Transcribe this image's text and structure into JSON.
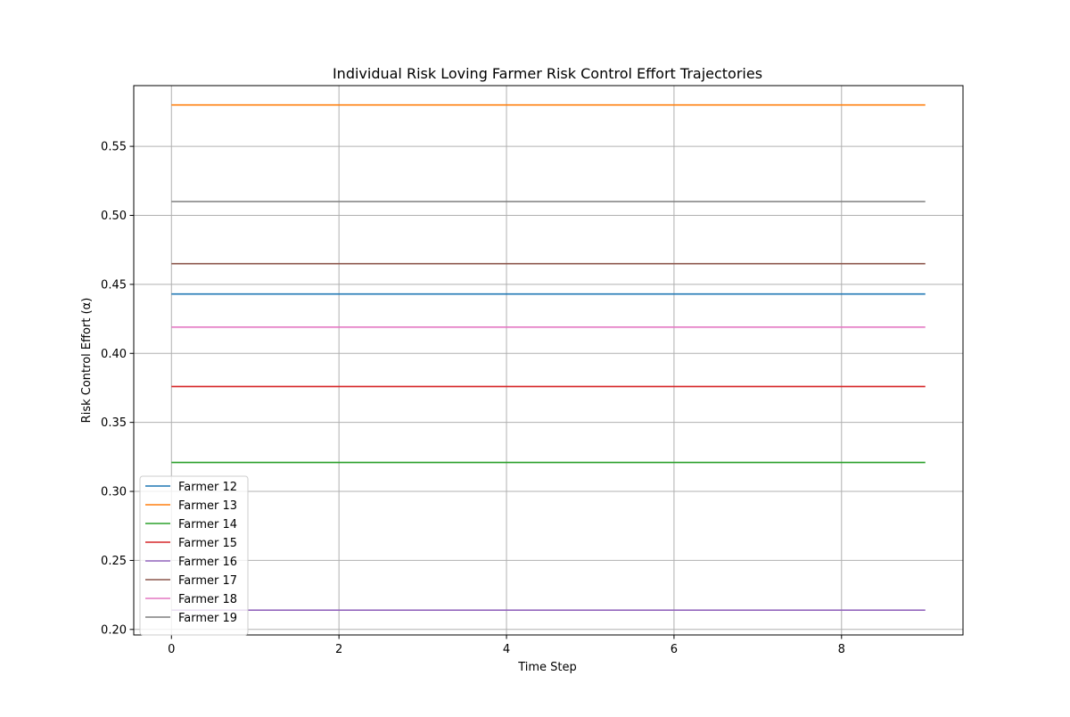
{
  "chart_data": {
    "type": "line",
    "title": "Individual Risk Loving Farmer Risk Control Effort Trajectories",
    "xlabel": "Time Step",
    "ylabel": "Risk Control Effort (α)",
    "x": [
      0,
      1,
      2,
      3,
      4,
      5,
      6,
      7,
      8,
      9
    ],
    "xlim": [
      -0.45,
      9.45
    ],
    "ylim": [
      0.196,
      0.594
    ],
    "xticks": [
      0,
      2,
      4,
      6,
      8
    ],
    "xtick_labels": [
      "0",
      "2",
      "4",
      "6",
      "8"
    ],
    "yticks": [
      0.2,
      0.25,
      0.3,
      0.35,
      0.4,
      0.45,
      0.5,
      0.55
    ],
    "ytick_labels": [
      "0.20",
      "0.25",
      "0.30",
      "0.35",
      "0.40",
      "0.45",
      "0.50",
      "0.55"
    ],
    "grid": true,
    "legend_position": "lower-left",
    "series": [
      {
        "name": "Farmer 12",
        "color": "#1f77b4",
        "values": [
          0.443,
          0.443,
          0.443,
          0.443,
          0.443,
          0.443,
          0.443,
          0.443,
          0.443,
          0.443
        ]
      },
      {
        "name": "Farmer 13",
        "color": "#ff7f0e",
        "values": [
          0.58,
          0.58,
          0.58,
          0.58,
          0.58,
          0.58,
          0.58,
          0.58,
          0.58,
          0.58
        ]
      },
      {
        "name": "Farmer 14",
        "color": "#2ca02c",
        "values": [
          0.321,
          0.321,
          0.321,
          0.321,
          0.321,
          0.321,
          0.321,
          0.321,
          0.321,
          0.321
        ]
      },
      {
        "name": "Farmer 15",
        "color": "#d62728",
        "values": [
          0.376,
          0.376,
          0.376,
          0.376,
          0.376,
          0.376,
          0.376,
          0.376,
          0.376,
          0.376
        ]
      },
      {
        "name": "Farmer 16",
        "color": "#9467bd",
        "values": [
          0.214,
          0.214,
          0.214,
          0.214,
          0.214,
          0.214,
          0.214,
          0.214,
          0.214,
          0.214
        ]
      },
      {
        "name": "Farmer 17",
        "color": "#8c564b",
        "values": [
          0.465,
          0.465,
          0.465,
          0.465,
          0.465,
          0.465,
          0.465,
          0.465,
          0.465,
          0.465
        ]
      },
      {
        "name": "Farmer 18",
        "color": "#e377c2",
        "values": [
          0.419,
          0.419,
          0.419,
          0.419,
          0.419,
          0.419,
          0.419,
          0.419,
          0.419,
          0.419
        ]
      },
      {
        "name": "Farmer 19",
        "color": "#7f7f7f",
        "values": [
          0.51,
          0.51,
          0.51,
          0.51,
          0.51,
          0.51,
          0.51,
          0.51,
          0.51,
          0.51
        ]
      }
    ]
  }
}
